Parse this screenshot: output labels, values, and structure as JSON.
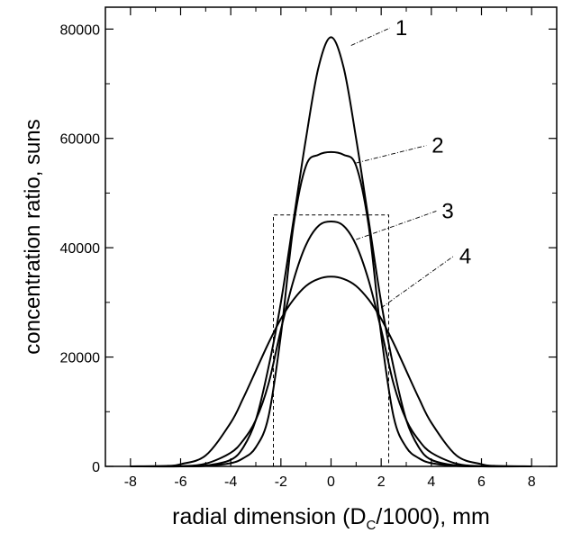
{
  "chart_data": {
    "type": "line",
    "title": "",
    "xlabel": "radial dimension (D",
    "xlabel_subscript": "C",
    "xlabel_suffix": "/1000), mm",
    "ylabel": "concentration ratio, suns",
    "xlim": [
      -9,
      9
    ],
    "ylim": [
      0,
      84000
    ],
    "x_ticks": [
      -8,
      -6,
      -4,
      -2,
      0,
      2,
      4,
      6,
      8
    ],
    "y_ticks": [
      0,
      20000,
      40000,
      60000,
      80000
    ],
    "grid": false,
    "legend": "none",
    "series": [
      {
        "label": "1",
        "points": [
          [
            -8,
            0
          ],
          [
            -6,
            0
          ],
          [
            -5,
            150
          ],
          [
            -4,
            1200
          ],
          [
            -3.5,
            3500
          ],
          [
            -3,
            8500
          ],
          [
            -2.5,
            18000
          ],
          [
            -2,
            30000
          ],
          [
            -1.5,
            45000
          ],
          [
            -1,
            60000
          ],
          [
            -0.5,
            73000
          ],
          [
            0,
            78500
          ],
          [
            0.5,
            73000
          ],
          [
            1,
            60000
          ],
          [
            1.5,
            45000
          ],
          [
            2,
            30000
          ],
          [
            2.5,
            18000
          ],
          [
            3,
            8500
          ],
          [
            3.5,
            3500
          ],
          [
            4,
            1200
          ],
          [
            5,
            150
          ],
          [
            6,
            0
          ],
          [
            8,
            0
          ]
        ]
      },
      {
        "label": "2",
        "points": [
          [
            -8,
            0
          ],
          [
            -6,
            0
          ],
          [
            -5,
            80
          ],
          [
            -4,
            600
          ],
          [
            -3.5,
            1500
          ],
          [
            -3,
            3500
          ],
          [
            -2.5,
            9000
          ],
          [
            -2,
            24000
          ],
          [
            -1.5,
            44000
          ],
          [
            -1,
            55000
          ],
          [
            -0.5,
            57000
          ],
          [
            0,
            57500
          ],
          [
            0.5,
            57000
          ],
          [
            1,
            55000
          ],
          [
            1.5,
            44000
          ],
          [
            2,
            24000
          ],
          [
            2.5,
            9000
          ],
          [
            3,
            3500
          ],
          [
            3.5,
            1500
          ],
          [
            4,
            600
          ],
          [
            5,
            80
          ],
          [
            6,
            0
          ],
          [
            8,
            0
          ]
        ]
      },
      {
        "label": "3",
        "points": [
          [
            -8,
            0
          ],
          [
            -6,
            50
          ],
          [
            -5,
            500
          ],
          [
            -4,
            2500
          ],
          [
            -3.5,
            4800
          ],
          [
            -3,
            8500
          ],
          [
            -2.5,
            15000
          ],
          [
            -2,
            25000
          ],
          [
            -1.5,
            34000
          ],
          [
            -1,
            40500
          ],
          [
            -0.5,
            44000
          ],
          [
            0,
            44800
          ],
          [
            0.5,
            44000
          ],
          [
            1,
            40500
          ],
          [
            1.5,
            34000
          ],
          [
            2,
            25000
          ],
          [
            2.5,
            15000
          ],
          [
            3,
            8500
          ],
          [
            3.5,
            4800
          ],
          [
            4,
            2500
          ],
          [
            5,
            500
          ],
          [
            6,
            50
          ],
          [
            8,
            0
          ]
        ]
      },
      {
        "label": "4",
        "points": [
          [
            -8,
            0
          ],
          [
            -6.5,
            100
          ],
          [
            -6,
            400
          ],
          [
            -5,
            2000
          ],
          [
            -4,
            8000
          ],
          [
            -3.5,
            12500
          ],
          [
            -3,
            17500
          ],
          [
            -2.5,
            22500
          ],
          [
            -2,
            27000
          ],
          [
            -1.5,
            30500
          ],
          [
            -1,
            33000
          ],
          [
            -0.5,
            34300
          ],
          [
            0,
            34700
          ],
          [
            0.5,
            34300
          ],
          [
            1,
            33000
          ],
          [
            1.5,
            30500
          ],
          [
            2,
            27000
          ],
          [
            2.5,
            22500
          ],
          [
            3,
            17500
          ],
          [
            3.5,
            12500
          ],
          [
            4,
            8000
          ],
          [
            5,
            2000
          ],
          [
            6,
            400
          ],
          [
            6.5,
            100
          ],
          [
            8,
            0
          ]
        ]
      }
    ],
    "annotations": [
      {
        "text": "1",
        "leader_from": [
          0.8,
          77000
        ],
        "leader_to": [
          2.35,
          80200
        ]
      },
      {
        "text": "2",
        "leader_from": [
          1.0,
          55500
        ],
        "leader_to": [
          3.8,
          58700
        ]
      },
      {
        "text": "3",
        "leader_from": [
          1.0,
          41500
        ],
        "leader_to": [
          4.2,
          46700
        ]
      },
      {
        "text": "4",
        "leader_from": [
          2.0,
          29000
        ],
        "leader_to": [
          4.9,
          38500
        ]
      }
    ],
    "reference_box": {
      "x": [
        -2.3,
        2.3
      ],
      "y": [
        0,
        46000
      ],
      "style": "dashed"
    }
  }
}
